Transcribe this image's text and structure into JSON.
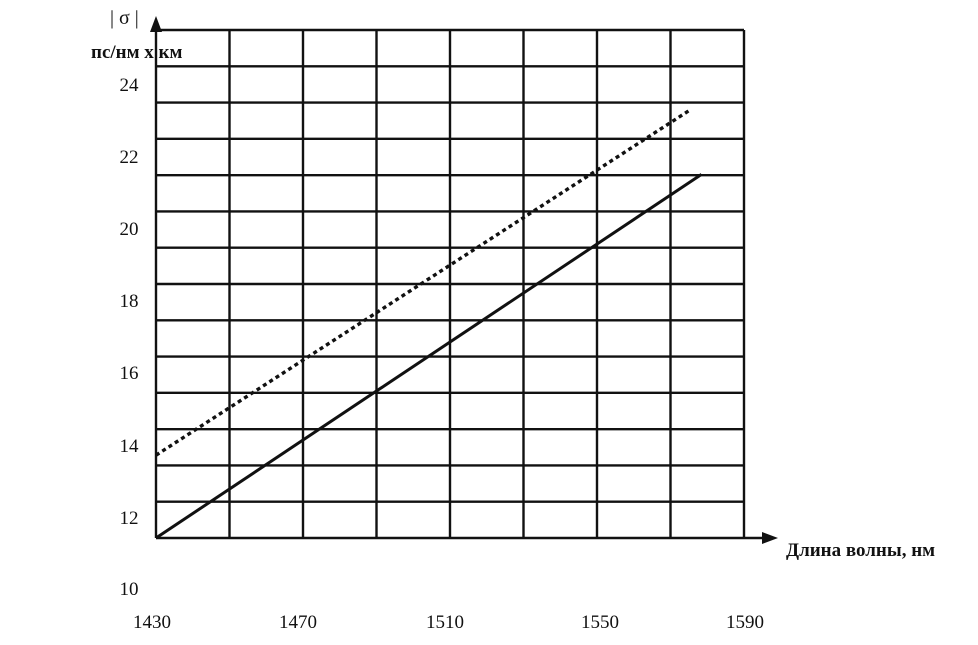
{
  "chart_data": {
    "type": "line",
    "title": "",
    "ylabel_symbol": "| σ |",
    "ylabel": "пс/нм х км",
    "xlabel": "Длина волны, нм",
    "xlim": [
      1430,
      1590
    ],
    "ylim": [
      10,
      24
    ],
    "x_ticks": [
      "1430",
      "1470",
      "1510",
      "1550",
      "1590"
    ],
    "y_ticks": [
      "10",
      "12",
      "14",
      "16",
      "18",
      "20",
      "22",
      "24"
    ],
    "grid": true,
    "series": [
      {
        "style": "dotted",
        "color": "#111111",
        "x": [
          1430,
          1575
        ],
        "y": [
          13.3,
          22.9
        ]
      },
      {
        "style": "solid",
        "color": "#111111",
        "x": [
          1430,
          1578
        ],
        "y": [
          11.0,
          21.1
        ]
      }
    ]
  }
}
